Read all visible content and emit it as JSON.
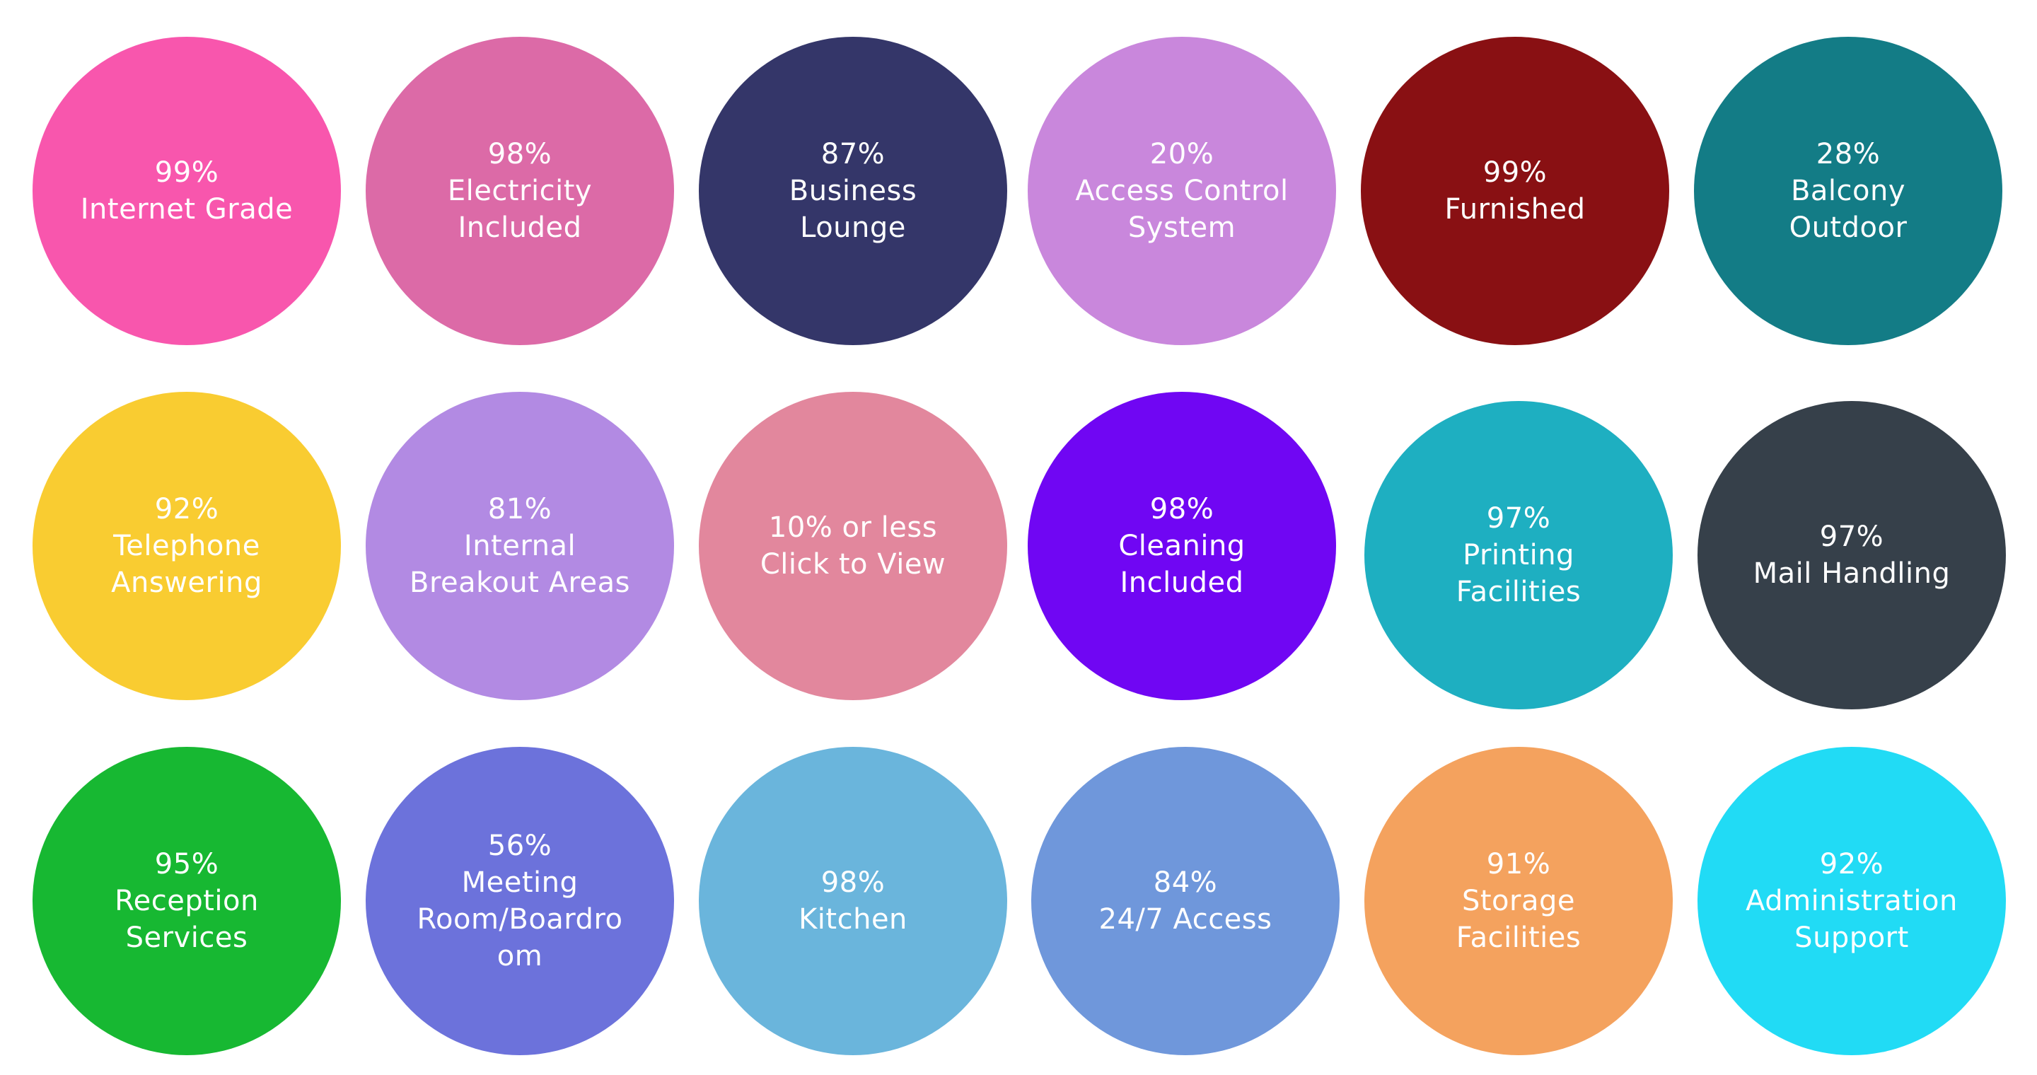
{
  "circles": [
    {
      "label": "99%\nInternet Grade",
      "color": "#f856ad"
    },
    {
      "label": "98%\nElectricity\nIncluded",
      "color": "#dc6aa7"
    },
    {
      "label": "87%\nBusiness\nLounge",
      "color": "#343669"
    },
    {
      "label": "20%\nAccess Control\nSystem",
      "color": "#c987dc"
    },
    {
      "label": "99%\nFurnished",
      "color": "#891013"
    },
    {
      "label": "28%\nBalcony\nOutdoor",
      "color": "#137c86"
    },
    {
      "label": "92%\nTelephone\nAnswering",
      "color": "#f9cc31"
    },
    {
      "label": "81%\nInternal\nBreakout Areas",
      "color": "#b28ae3"
    },
    {
      "label": "10% or less\nClick to View",
      "color": "#e2879d"
    },
    {
      "label": "98%\nCleaning\nIncluded",
      "color": "#7006f3"
    },
    {
      "label": "97%\nPrinting\nFacilities",
      "color": "#1eafc1"
    },
    {
      "label": "97%\nMail Handling",
      "color": "#36404a"
    },
    {
      "label": "95%\nReception\nServices",
      "color": "#17b832"
    },
    {
      "label": "56%\nMeeting\nRoom/Boardro\nom",
      "color": "#6c72db"
    },
    {
      "label": "98%\nKitchen",
      "color": "#6ab5dc"
    },
    {
      "label": "84%\n24/7 Access",
      "color": "#6f97db"
    },
    {
      "label": "91%\nStorage\nFacilities",
      "color": "#f4a25e"
    },
    {
      "label": "92%\nAdministration\nSupport",
      "color": "#21dbf5"
    }
  ]
}
